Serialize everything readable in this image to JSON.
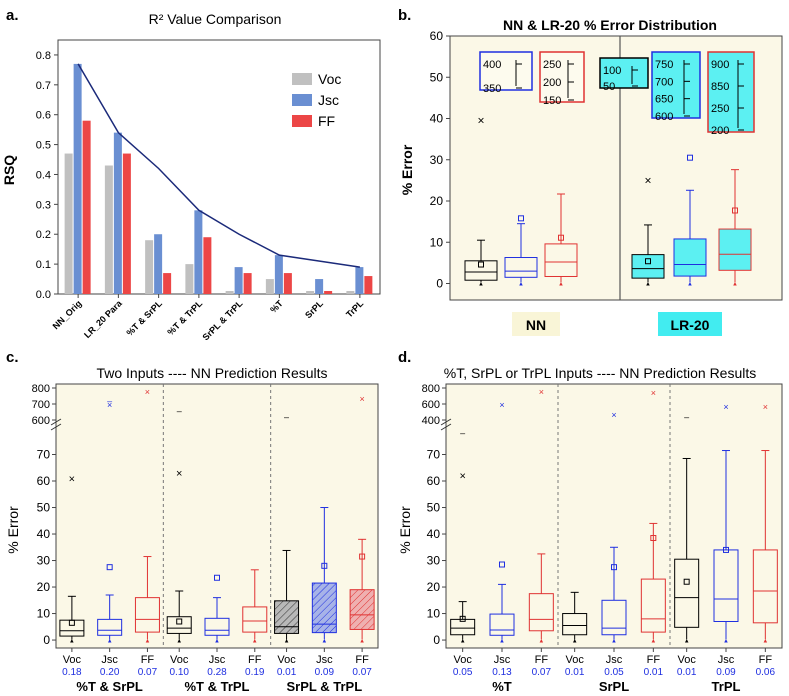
{
  "colors": {
    "voc": "#c0c0c0",
    "jsc": "#6a8fd2",
    "ff": "#ec4646",
    "trend": "#1b2a7a",
    "panel_bg": "#fbf8e7",
    "box_voc": "#000000",
    "box_jsc": "#1f2fe0",
    "box_ff": "#e03232",
    "nn_label_bg": "#f9f5d7",
    "lr_label_bg": "#42ecf0",
    "hatch_fill": "#b8b8b8"
  },
  "chart_data": [
    {
      "panel_letter": "a.",
      "type": "bar",
      "title": "R² Value Comparison",
      "ylabel": "RSQ",
      "ylim": [
        0,
        0.85
      ],
      "yticks": [
        "0.0",
        "0.1",
        "0.2",
        "0.3",
        "0.4",
        "0.5",
        "0.6",
        "0.7",
        "0.8"
      ],
      "categories": [
        "NN_Orig",
        "LR_20 Para",
        "%T & SrPL",
        "%T & TrPL",
        "SrPL & TrPL",
        "%T",
        "SrPL",
        "TrPL"
      ],
      "series": [
        {
          "name": "Voc",
          "values": [
            0.47,
            0.43,
            0.18,
            0.1,
            0.01,
            0.05,
            0.01,
            0.01
          ]
        },
        {
          "name": "Jsc",
          "values": [
            0.77,
            0.54,
            0.2,
            0.28,
            0.09,
            0.13,
            0.05,
            0.09
          ]
        },
        {
          "name": "FF",
          "values": [
            0.58,
            0.47,
            0.07,
            0.19,
            0.07,
            0.07,
            0.01,
            0.06
          ]
        }
      ],
      "trend": [
        0.77,
        0.54,
        0.42,
        0.28,
        0.2,
        0.13,
        0.11,
        0.09
      ],
      "legend_position": "top-right"
    },
    {
      "panel_letter": "b.",
      "type": "box",
      "title": "NN & LR-20 % Error Distribution",
      "ylabel": "% Error",
      "ylim": [
        -4,
        60
      ],
      "yticks": [
        "0",
        "10",
        "20",
        "30",
        "40",
        "50",
        "60"
      ],
      "groups": [
        "NN",
        "LR-20"
      ],
      "boxes": [
        {
          "q1": 0.8,
          "median": 2.8,
          "q3": 5.5,
          "lo": 0.3,
          "hi": 10.5,
          "mean": 4.6,
          "max": 39.5
        },
        {
          "q1": 1.5,
          "median": 3.0,
          "q3": 6.3,
          "lo": 0.3,
          "hi": 14.5,
          "mean": 15.8,
          "max": null
        },
        {
          "q1": 1.7,
          "median": 5.2,
          "q3": 9.6,
          "lo": 0.3,
          "hi": 21.7,
          "mean": 11.1,
          "max": null
        },
        {
          "q1": 1.3,
          "median": 3.6,
          "q3": 7.0,
          "lo": 0.3,
          "hi": 14.2,
          "mean": 5.4,
          "max": 25.0
        },
        {
          "q1": 1.8,
          "median": 4.6,
          "q3": 10.8,
          "lo": 0.3,
          "hi": 22.6,
          "mean": 30.5,
          "max": null
        },
        {
          "q1": 3.2,
          "median": 7.1,
          "q3": 13.2,
          "lo": 0.3,
          "hi": 27.6,
          "mean": 17.7,
          "max": null
        }
      ],
      "insets": [
        {
          "ticks": [
            "400",
            "350"
          ]
        },
        {
          "ticks": [
            "250",
            "200",
            "150"
          ]
        },
        {
          "ticks": [
            "100",
            "50"
          ]
        },
        {
          "ticks": [
            "750",
            "700",
            "650",
            "600"
          ]
        },
        {
          "ticks": [
            "900",
            "850",
            "250",
            "200"
          ]
        }
      ]
    },
    {
      "panel_letter": "c.",
      "type": "box",
      "title": "Two Inputs ---- NN Prediction Results",
      "ylabel": "% Error",
      "ylim_lower": [
        -3,
        80
      ],
      "yticks_lower": [
        "0",
        "10",
        "20",
        "30",
        "40",
        "50",
        "60",
        "70"
      ],
      "yticks_upper": [
        "600",
        "700",
        "800"
      ],
      "groups": [
        {
          "name": "%T & SrPL",
          "labels": [
            "Voc",
            "Jsc",
            "FF"
          ],
          "rsq": [
            "0.18",
            "0.20",
            "0.07"
          ]
        },
        {
          "name": "%T & TrPL",
          "labels": [
            "Voc",
            "Jsc",
            "FF"
          ],
          "rsq": [
            "0.10",
            "0.28",
            "0.19"
          ]
        },
        {
          "name": "SrPL & TrPL",
          "labels": [
            "Voc",
            "Jsc",
            "FF"
          ],
          "rsq": [
            "0.01",
            "0.09",
            "0.07"
          ]
        }
      ],
      "boxes": [
        {
          "q1": 1.5,
          "median": 3.5,
          "q3": 7.5,
          "lo": 0.2,
          "hi": 16.5,
          "mean": 6.5,
          "max": 61.0
        },
        {
          "q1": 1.8,
          "median": 3.7,
          "q3": 7.8,
          "lo": 0.2,
          "hi": 17.0,
          "mean": 27.5,
          "max": null
        },
        {
          "q1": 3.0,
          "median": 7.8,
          "q3": 16.0,
          "lo": 0.3,
          "hi": 31.5,
          "mean": null,
          "max": null
        },
        {
          "q1": 2.5,
          "median": 4.5,
          "q3": 8.8,
          "lo": 0.2,
          "hi": 18.5,
          "mean": 7.0,
          "max": 63.0
        },
        {
          "q1": 1.8,
          "median": 3.7,
          "q3": 8.2,
          "lo": 0.2,
          "hi": 16.0,
          "mean": 23.5,
          "max": null
        },
        {
          "q1": 3.0,
          "median": 7.2,
          "q3": 12.5,
          "lo": 0.3,
          "hi": 26.5,
          "mean": null,
          "max": null
        },
        {
          "q1": 2.5,
          "median": 5.0,
          "q3": 14.8,
          "lo": 0.2,
          "hi": 33.8,
          "mean": null,
          "max": null
        },
        {
          "q1": 2.8,
          "median": 6.0,
          "q3": 21.5,
          "lo": 0.3,
          "hi": 50.0,
          "mean": 28.0,
          "max": null
        },
        {
          "q1": 4.0,
          "median": 9.5,
          "q3": 19.0,
          "lo": 0.3,
          "hi": 38.0,
          "mean": 31.5,
          "max": null
        }
      ]
    },
    {
      "panel_letter": "d.",
      "type": "box",
      "title": "%T, SrPL or TrPL Inputs ---- NN Prediction Results",
      "ylabel": "% Error",
      "ylim_lower": [
        -3,
        80
      ],
      "yticks_lower": [
        "0",
        "10",
        "20",
        "30",
        "40",
        "50",
        "60",
        "70"
      ],
      "yticks_upper": [
        "400",
        "600",
        "800"
      ],
      "groups": [
        {
          "name": "%T",
          "labels": [
            "Voc",
            "Jsc",
            "FF"
          ],
          "rsq": [
            "0.05",
            "0.13",
            "0.07"
          ]
        },
        {
          "name": "SrPL",
          "labels": [
            "Voc",
            "Jsc",
            "FF"
          ],
          "rsq": [
            "0.01",
            "0.05",
            "0.01"
          ]
        },
        {
          "name": "TrPL",
          "labels": [
            "Voc",
            "Jsc",
            "FF"
          ],
          "rsq": [
            "0.01",
            "0.09",
            "0.06"
          ]
        }
      ],
      "boxes": [
        {
          "q1": 2.0,
          "median": 4.5,
          "q3": 7.8,
          "lo": 0.2,
          "hi": 14.5,
          "mean": 8.0,
          "max": 62.0
        },
        {
          "q1": 1.8,
          "median": 3.8,
          "q3": 9.8,
          "lo": 0.2,
          "hi": 21.0,
          "mean": 28.5,
          "max": null
        },
        {
          "q1": 3.5,
          "median": 7.8,
          "q3": 17.5,
          "lo": 0.3,
          "hi": 32.5,
          "mean": null,
          "max": null
        },
        {
          "q1": 2.0,
          "median": 5.5,
          "q3": 10.0,
          "lo": 0.2,
          "hi": 18.0,
          "mean": null,
          "max": null
        },
        {
          "q1": 2.0,
          "median": 4.5,
          "q3": 15.0,
          "lo": 0.2,
          "hi": 35.0,
          "mean": 27.5,
          "max": null
        },
        {
          "q1": 3.0,
          "median": 8.0,
          "q3": 23.0,
          "lo": 0.3,
          "hi": 44.0,
          "mean": 38.5,
          "max": null
        },
        {
          "q1": 4.8,
          "median": 16.0,
          "q3": 30.5,
          "lo": 0.3,
          "hi": 68.5,
          "mean": 22.0,
          "max": null
        },
        {
          "q1": 7.0,
          "median": 15.5,
          "q3": 34.0,
          "lo": 0.3,
          "hi": 71.5,
          "mean": 34.0,
          "max": null
        },
        {
          "q1": 6.5,
          "median": 18.5,
          "q3": 34.0,
          "lo": 0.3,
          "hi": 71.5,
          "mean": null,
          "max": null
        }
      ]
    }
  ]
}
